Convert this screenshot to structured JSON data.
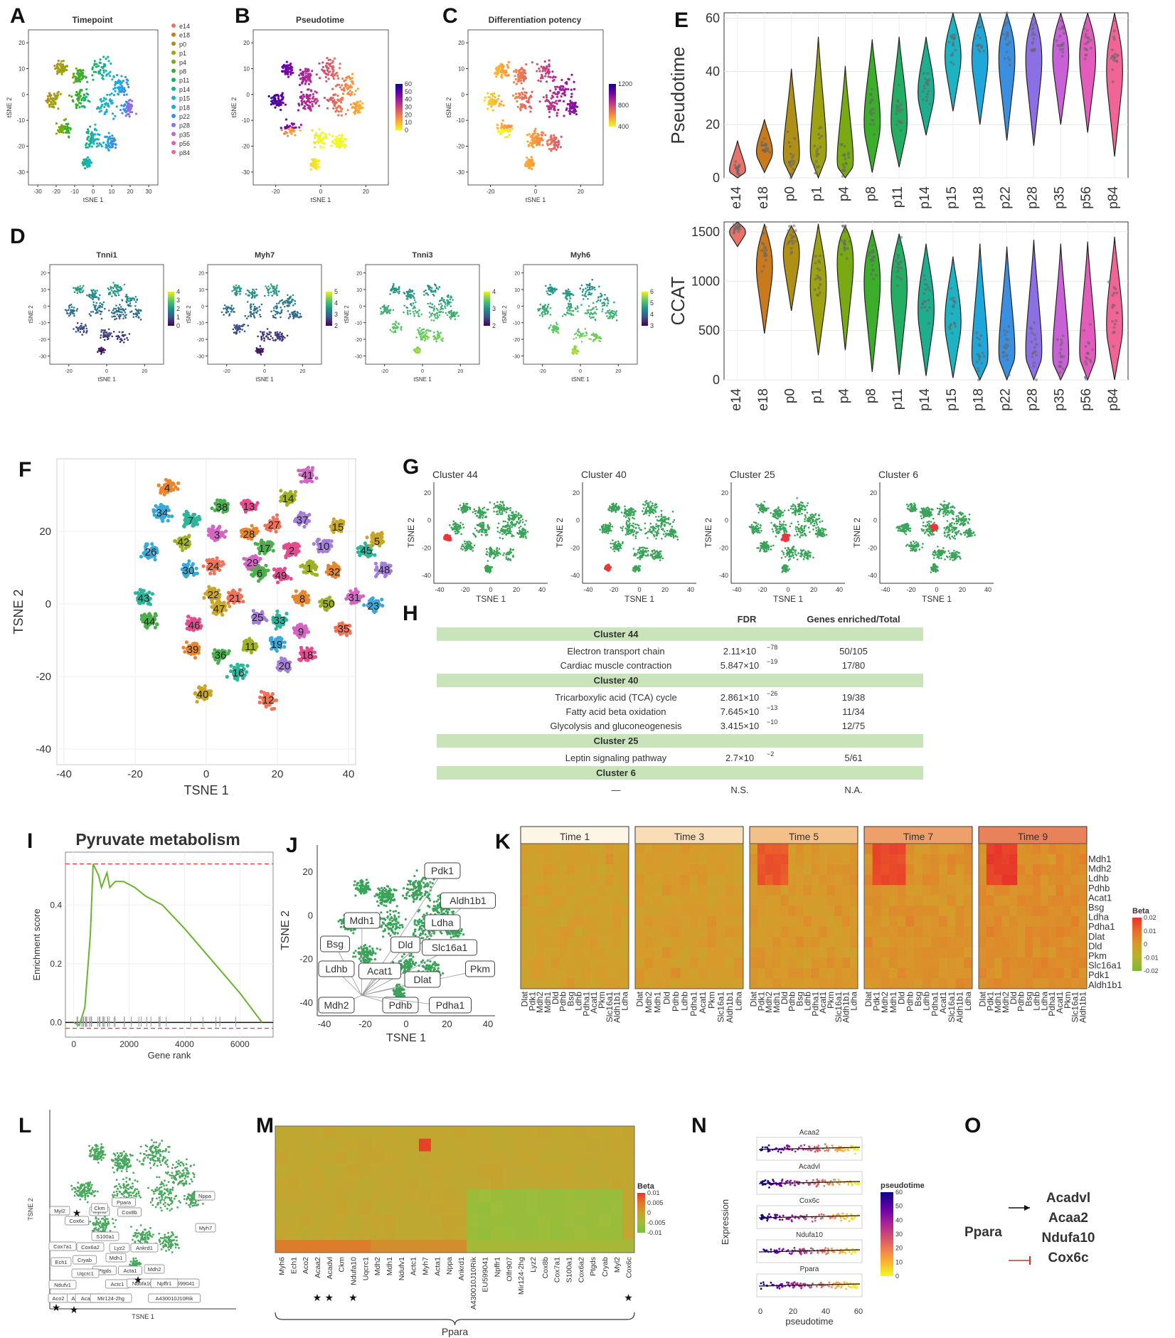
{
  "panels": {
    "A": {
      "letter": "A",
      "title": "Timepoint",
      "xlabel": "tSNE 1",
      "ylabel": "tSNE 2",
      "xticks": [
        "-30",
        "-20",
        "-10",
        "0",
        "10",
        "20",
        "30"
      ],
      "yticks": [
        "20",
        "10",
        "0",
        "-10",
        "-20",
        "-30"
      ],
      "legend": [
        "e14",
        "e18",
        "p0",
        "p1",
        "p4",
        "p8",
        "p11",
        "p14",
        "p15",
        "p18",
        "p22",
        "p28",
        "p35",
        "p56",
        "p84"
      ]
    },
    "B": {
      "letter": "B",
      "title": "Pseudotime",
      "xlabel": "tSNE 1",
      "ylabel": "tSNE 2",
      "xticks": [
        "-20",
        "0",
        "20"
      ],
      "yticks": [
        "20",
        "10",
        "0",
        "-10",
        "-20",
        "-30"
      ],
      "scale": [
        "60",
        "50",
        "40",
        "30",
        "20",
        "10",
        "0"
      ]
    },
    "C": {
      "letter": "C",
      "title": "Differentiation potency",
      "xlabel": "tSNE 1",
      "ylabel": "tSNE 2",
      "xticks": [
        "-20",
        "0",
        "20"
      ],
      "yticks": [
        "20",
        "10",
        "0",
        "-10",
        "-20",
        "-30"
      ],
      "scale": [
        "1200",
        "800",
        "400"
      ]
    },
    "D": {
      "letter": "D",
      "xlabel": "tSNE 1",
      "ylabel": "tSNE 2",
      "xticks": [
        "-20",
        "0",
        "20"
      ],
      "yticks": [
        "20",
        "10",
        "0",
        "-10",
        "-20",
        "-30"
      ],
      "subs": [
        {
          "title": "Tnni1",
          "scale": [
            "4",
            "3",
            "2",
            "1",
            "0"
          ]
        },
        {
          "title": "Myh7",
          "scale": [
            "5",
            "4",
            "3",
            "2"
          ]
        },
        {
          "title": "Tnni3",
          "scale": [
            "4",
            "3",
            "2"
          ]
        },
        {
          "title": "Myh6",
          "scale": [
            "6",
            "5",
            "4",
            "3"
          ]
        }
      ]
    },
    "E": {
      "letter": "E",
      "top_ylabel": "Pseudotime",
      "bottom_ylabel": "CCAT",
      "top_yticks": [
        "60",
        "40",
        "20",
        "0"
      ],
      "bottom_yticks": [
        "1500",
        "1000",
        "500",
        "0"
      ]
    },
    "F": {
      "letter": "F",
      "xlabel": "TSNE 1",
      "ylabel": "TSNE 2",
      "xticks": [
        "-40",
        "-20",
        "0",
        "20",
        "40"
      ],
      "yticks": [
        "20",
        "0",
        "-20",
        "-40"
      ],
      "clusters": [
        "41",
        "4",
        "14",
        "34",
        "38",
        "13",
        "37",
        "7",
        "15",
        "27",
        "3",
        "28",
        "42",
        "26",
        "17",
        "2",
        "10",
        "45",
        "5",
        "24",
        "29",
        "32",
        "1",
        "30",
        "6",
        "49",
        "48",
        "43",
        "22",
        "21",
        "31",
        "8",
        "50",
        "23",
        "44",
        "46",
        "25",
        "33",
        "47",
        "35",
        "9",
        "39",
        "11",
        "19",
        "36",
        "18",
        "20",
        "16",
        "40",
        "12"
      ]
    },
    "G": {
      "letter": "G",
      "xlabel": "TSNE 1",
      "ylabel": "TSNE 2",
      "xticks": [
        "-40",
        "-20",
        "0",
        "20",
        "40"
      ],
      "yticks": [
        "20",
        "0",
        "-20",
        "-40"
      ],
      "subs": [
        "Cluster 44",
        "Cluster 40",
        "Cluster 25",
        "Cluster 6"
      ]
    },
    "H": {
      "letter": "H",
      "col_fdr": "FDR",
      "col_genes": "Genes enriched/Total",
      "groups": [
        {
          "name": "Cluster 44",
          "rows": [
            {
              "term": "Electron transport chain",
              "fdr_base": "2.11×10",
              "fdr_exp": "−78",
              "genes": "50/105"
            },
            {
              "term": "Cardiac muscle contraction",
              "fdr_base": "5.847×10",
              "fdr_exp": "−19",
              "genes": "17/80"
            }
          ]
        },
        {
          "name": "Cluster 40",
          "rows": [
            {
              "term": "Tricarboxylic acid (TCA) cycle",
              "fdr_base": "2.861×10",
              "fdr_exp": "−26",
              "genes": "19/38"
            },
            {
              "term": "Fatty acid beta oxidation",
              "fdr_base": "7.645×10",
              "fdr_exp": "−13",
              "genes": "11/34"
            },
            {
              "term": "Glycolysis and gluconeogenesis",
              "fdr_base": "3.415×10",
              "fdr_exp": "−10",
              "genes": "12/75"
            }
          ]
        },
        {
          "name": "Cluster 25",
          "rows": [
            {
              "term": "Leptin signaling pathway",
              "fdr_base": "2.7×10",
              "fdr_exp": "−2",
              "genes": "5/61"
            }
          ]
        },
        {
          "name": "Cluster 6",
          "rows": [
            {
              "term": "—",
              "fdr_base": "N.S.",
              "fdr_exp": "",
              "genes": "N.A."
            }
          ]
        }
      ]
    },
    "I": {
      "letter": "I",
      "title": "Pyruvate metabolism",
      "xlabel": "Gene rank",
      "ylabel": "Enrichment score",
      "xticks": [
        "0",
        "2000",
        "4000",
        "6000"
      ],
      "yticks": [
        "0.4",
        "0.2",
        "0.0"
      ]
    },
    "J": {
      "letter": "J",
      "xlabel": "TSNE 1",
      "ylabel": "TSNE 2",
      "xticks": [
        "-40",
        "-20",
        "0",
        "20",
        "40"
      ],
      "yticks": [
        "20",
        "0",
        "-20",
        "-40"
      ],
      "genes": [
        "Pdk1",
        "Aldh1b1",
        "Mdh1",
        "Ldha",
        "Bsg",
        "Dld",
        "Slc16a1",
        "Pkm",
        "Ldhb",
        "Acat1",
        "Dlat",
        "Mdh2",
        "Pdhb",
        "Pdha1"
      ]
    },
    "K": {
      "letter": "K",
      "times": [
        "Time 1",
        "Time 3",
        "Time 5",
        "Time 7",
        "Time 9"
      ],
      "row_genes": [
        "Mdh1",
        "Mdh2",
        "Ldhb",
        "Pdhb",
        "Acat1",
        "Bsg",
        "Ldha",
        "Pdha1",
        "Dlat",
        "Dld",
        "Pkm",
        "Slc16a1",
        "Pdk1",
        "Aldh1b1"
      ],
      "col_sets": [
        [
          "Dlat",
          "Pdk1",
          "Mdh2",
          "Mdh1",
          "Dld",
          "Pdhb",
          "Bsg",
          "Ldhb",
          "Pdha1",
          "Acat1",
          "Pkm",
          "Slc16a1",
          "Aldh1b1",
          "Ldha"
        ],
        [
          "Dlat",
          "Mdh2",
          "Mdh1",
          "Dld",
          "Pdhb",
          "Ldhb",
          "Pdha1",
          "Acat1",
          "Pkm",
          "Slc16a1",
          "Aldh1b1",
          "Ldha"
        ],
        [
          "Dlat",
          "Pdk1",
          "Mdh2",
          "Mdh1",
          "Dld",
          "Pdhb",
          "Bsg",
          "Ldhb",
          "Pdha1",
          "Acat1",
          "Pkm",
          "Slc16a1",
          "Aldh1b1",
          "Ldha"
        ],
        [
          "Dlat",
          "Pdk1",
          "Mdh2",
          "Mdh1",
          "Dld",
          "Pdhb",
          "Bsg",
          "Ldhb",
          "Pdha1",
          "Acat1",
          "Slc16a1",
          "Aldh1b1",
          "Ldha"
        ],
        [
          "Dlat",
          "Pdk1",
          "Mdh1",
          "Mdh2",
          "Dld",
          "Pdhb",
          "Bsg",
          "Ldhb",
          "Ldha",
          "Pdha1",
          "Acat1",
          "Pkm",
          "Slc16a1",
          "Aldh1b1"
        ]
      ],
      "legend_title": "Beta",
      "legend_ticks": [
        "0.02",
        "0.01",
        "0",
        "-0.01",
        "-0.02"
      ]
    },
    "L": {
      "letter": "L",
      "xlabel": "TSNE 1",
      "ylabel": "TSNE 2",
      "genes": [
        "Myl2",
        "Cox6c",
        "Myh6",
        "Ppara",
        "Cox8b",
        "Nppa",
        "Myh7",
        "Cox7a1",
        "S100a1",
        "Cox6a2",
        "Lyz2",
        "Ankrd1",
        "Ech1",
        "Mdh1",
        "Cryab",
        "Ptgds",
        "Acta1",
        "Mdh2",
        "Uqcrc1",
        "EU599041",
        "Ndufv1",
        "Actc1",
        "Ndufa10",
        "Npffr1",
        "Aco2",
        "Acaa2",
        "Acadvl",
        "Mir124-2hg",
        "A430010J10Rik",
        "Ckm"
      ]
    },
    "M": {
      "letter": "M",
      "cols": [
        "Myh6",
        "Ech1",
        "Aco2",
        "Acaa2",
        "Acadvl",
        "Ckm",
        "Ndufa10",
        "Uqcrc1",
        "Mdh2",
        "Mdh1",
        "Ndufv1",
        "Actc1",
        "Myh7",
        "Acta1",
        "Nppa",
        "Ankrd1",
        "A430010J10Rik",
        "EU599041",
        "Npffr1",
        "Olfr907",
        "Mir124-2hg",
        "Lyz2",
        "Cox8b",
        "Cox7a1",
        "S100a1",
        "Cox6a2",
        "Ptgds",
        "Cryab",
        "Myl2",
        "Cox6c"
      ],
      "starred": [
        "Acaa2",
        "Acadvl",
        "Ndufa10",
        "Cox6c"
      ],
      "bottom_label": "Ppara",
      "legend_title": "Beta",
      "legend_ticks": [
        "0.01",
        "0.005",
        "0",
        "-0.005",
        "-0.01"
      ]
    },
    "N": {
      "letter": "N",
      "genes": [
        "Acaa2",
        "Acadvl",
        "Cox6c",
        "Ndufa10",
        "Ppara"
      ],
      "ylabel": "Expression",
      "xlabel": "pseudotime",
      "xticks": [
        "0",
        "20",
        "40",
        "60"
      ],
      "legend_title": "pseudotime",
      "legend_ticks": [
        "60",
        "50",
        "40",
        "30",
        "20",
        "10",
        "0"
      ]
    },
    "O": {
      "letter": "O",
      "regulator": "Ppara",
      "targets": [
        "Acadvl",
        "Acaa2",
        "Ndufa10",
        "Cox6c"
      ]
    }
  },
  "chart_data": [
    {
      "type": "violin",
      "panel": "E-top",
      "ylabel": "Pseudotime",
      "ylim": [
        0,
        62
      ],
      "categories": [
        "e14",
        "e18",
        "p0",
        "p1",
        "p4",
        "p8",
        "p11",
        "p14",
        "p15",
        "p18",
        "p22",
        "p28",
        "p35",
        "p56",
        "p84"
      ],
      "median": [
        3,
        11,
        9,
        11,
        6,
        24,
        24,
        35,
        50,
        51,
        52,
        52,
        52,
        52,
        48
      ],
      "min": [
        0,
        2,
        0,
        0,
        0,
        2,
        4,
        16,
        25,
        20,
        14,
        12,
        20,
        17,
        8
      ],
      "max": [
        14,
        22,
        41,
        53,
        42,
        52,
        53,
        53,
        62,
        62,
        62,
        62,
        62,
        62,
        62
      ],
      "colors": [
        "#e8736b",
        "#c97a1d",
        "#b08f17",
        "#9ca212",
        "#79aa12",
        "#3cae2b",
        "#24ae64",
        "#1eae8e",
        "#1db3c2",
        "#20a7d9",
        "#3b8fe0",
        "#8b6fe5",
        "#c860d6",
        "#e35bbb",
        "#f06496"
      ]
    },
    {
      "type": "violin",
      "panel": "E-bottom",
      "ylabel": "CCAT",
      "ylim": [
        0,
        1600
      ],
      "categories": [
        "e14",
        "e18",
        "p0",
        "p1",
        "p4",
        "p8",
        "p11",
        "p14",
        "p15",
        "p18",
        "p22",
        "p28",
        "p35",
        "p56",
        "p84"
      ],
      "median": [
        1530,
        1300,
        1420,
        1100,
        1400,
        1200,
        1150,
        850,
        700,
        250,
        300,
        300,
        250,
        300,
        650
      ],
      "min": [
        1350,
        470,
        700,
        250,
        300,
        80,
        50,
        40,
        20,
        0,
        0,
        0,
        0,
        0,
        0
      ],
      "max": [
        1600,
        1580,
        1560,
        1580,
        1560,
        1520,
        1480,
        1380,
        1250,
        1380,
        1350,
        1420,
        1380,
        1400,
        1450
      ],
      "colors": [
        "#e8736b",
        "#c97a1d",
        "#b08f17",
        "#9ca212",
        "#79aa12",
        "#3cae2b",
        "#24ae64",
        "#1eae8e",
        "#1db3c2",
        "#20a7d9",
        "#3b8fe0",
        "#8b6fe5",
        "#c860d6",
        "#e35bbb",
        "#f06496"
      ]
    },
    {
      "type": "line",
      "panel": "I",
      "title": "Pyruvate metabolism",
      "xlabel": "Gene rank",
      "ylabel": "Enrichment score",
      "x": [
        0,
        200,
        400,
        600,
        700,
        900,
        1000,
        1200,
        1300,
        1500,
        1800,
        2200,
        2600,
        3200,
        4000,
        5000,
        6000,
        6800
      ],
      "y": [
        0.0,
        -0.01,
        0.05,
        0.3,
        0.54,
        0.5,
        0.46,
        0.51,
        0.46,
        0.48,
        0.48,
        0.46,
        0.43,
        0.4,
        0.32,
        0.21,
        0.1,
        0.0
      ],
      "threshold_lines": [
        0.54,
        -0.02
      ],
      "xlim": [
        -300,
        7200
      ],
      "ylim": [
        -0.05,
        0.58
      ]
    }
  ]
}
